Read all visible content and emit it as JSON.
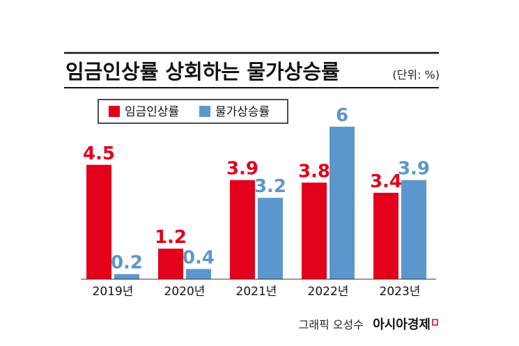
{
  "title": "임금인상률 상회하는 물가상승률",
  "unit": "(단위: %)",
  "credit": "그래픽 오성수",
  "brand": "아시아경제",
  "colors": {
    "wage": "#e2001a",
    "price": "#5b97cc",
    "text": "#111111"
  },
  "chart_data": {
    "type": "bar",
    "title": "임금인상률 상회하는 물가상승률",
    "unit": "(단위: %)",
    "categories": [
      "2019년",
      "2020년",
      "2021년",
      "2022년",
      "2023년"
    ],
    "series": [
      {
        "name": "임금인상률",
        "color": "#e2001a",
        "values": [
          4.5,
          1.2,
          3.9,
          3.8,
          3.4
        ],
        "labels": [
          "4.5",
          "1.2",
          "3.9",
          "3.8",
          "3.4"
        ]
      },
      {
        "name": "물가상승률",
        "color": "#5b97cc",
        "values": [
          0.2,
          0.4,
          3.2,
          6,
          3.9
        ],
        "labels": [
          "0.2",
          "0.4",
          "3.2",
          "6",
          "3.9"
        ]
      }
    ],
    "ylim": [
      0,
      6
    ],
    "grid": false,
    "legend": "top-left"
  }
}
